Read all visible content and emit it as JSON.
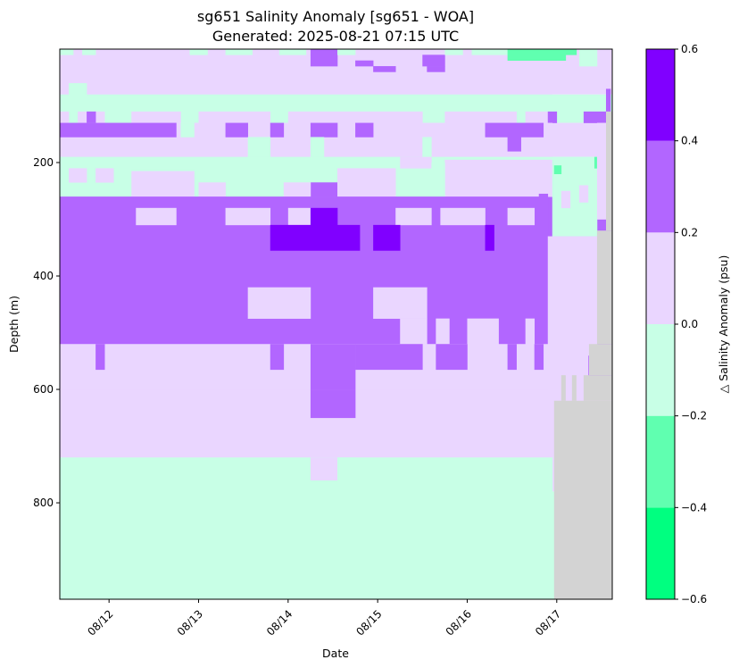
{
  "chart_data": {
    "type": "heatmap",
    "title_lines": [
      "sg651 Salinity Anomaly [sg651 - WOA]",
      "Generated: 2025-08-21 07:15 UTC"
    ],
    "xlabel": "Date",
    "ylabel": "Depth (m)",
    "x_range_days": [
      11.45,
      17.62
    ],
    "y_range_m": [
      0,
      970
    ],
    "y_inverted": true,
    "x_ticks": [
      {
        "day": 12,
        "label": "08/12"
      },
      {
        "day": 13,
        "label": "08/13"
      },
      {
        "day": 14,
        "label": "08/14"
      },
      {
        "day": 15,
        "label": "08/15"
      },
      {
        "day": 16,
        "label": "08/16"
      },
      {
        "day": 17,
        "label": "08/17"
      }
    ],
    "y_ticks": [
      200,
      400,
      600,
      800
    ],
    "colorbar": {
      "label": "△ Salinity Anomaly (psu)",
      "bounds": [
        -0.6,
        -0.4,
        -0.2,
        0.0,
        0.2,
        0.4,
        0.6
      ],
      "tick_labels": [
        "−0.6",
        "−0.4",
        "−0.2",
        "0.0",
        "0.2",
        "0.4",
        "0.6"
      ],
      "colors": [
        "#00ff80",
        "#60ffb0",
        "#c8ffe6",
        "#ead6ff",
        "#b266ff",
        "#8000ff"
      ]
    },
    "nodata_color": "#d3d3d3",
    "background_layers": [
      {
        "from_m": 0,
        "to_m": 80,
        "value": 0.1
      },
      {
        "from_m": 80,
        "to_m": 130,
        "value": -0.1
      },
      {
        "from_m": 130,
        "to_m": 190,
        "value": 0.1
      },
      {
        "from_m": 190,
        "to_m": 260,
        "value": -0.1
      },
      {
        "from_m": 260,
        "to_m": 600,
        "value": 0.3
      },
      {
        "from_m": 600,
        "to_m": 780,
        "value": 0.1
      },
      {
        "from_m": 780,
        "to_m": 970,
        "value": -0.1
      }
    ],
    "cells": [
      {
        "x": [
          11.45,
          16.95
        ],
        "y": [
          0,
          80
        ],
        "value": 0.1
      },
      {
        "x": [
          11.45,
          11.6
        ],
        "y": [
          0,
          10
        ],
        "value": -0.1
      },
      {
        "x": [
          11.7,
          11.85
        ],
        "y": [
          0,
          10
        ],
        "value": -0.1
      },
      {
        "x": [
          12.9,
          13.1
        ],
        "y": [
          0,
          10
        ],
        "value": -0.1
      },
      {
        "x": [
          13.3,
          13.6
        ],
        "y": [
          0,
          10
        ],
        "value": -0.1
      },
      {
        "x": [
          13.9,
          14.2
        ],
        "y": [
          0,
          10
        ],
        "value": -0.1
      },
      {
        "x": [
          14.25,
          14.55
        ],
        "y": [
          0,
          10
        ],
        "value": 0.3
      },
      {
        "x": [
          14.25,
          14.55
        ],
        "y": [
          10,
          30
        ],
        "value": 0.3
      },
      {
        "x": [
          14.55,
          14.75
        ],
        "y": [
          0,
          10
        ],
        "value": -0.1
      },
      {
        "x": [
          15.5,
          15.75
        ],
        "y": [
          10,
          30
        ],
        "value": 0.3
      },
      {
        "x": [
          15.75,
          15.95
        ],
        "y": [
          0,
          10
        ],
        "value": -0.1
      },
      {
        "x": [
          16.05,
          16.45
        ],
        "y": [
          0,
          10
        ],
        "value": -0.1
      },
      {
        "x": [
          16.45,
          16.8
        ],
        "y": [
          0,
          20
        ],
        "value": -0.3
      },
      {
        "x": [
          16.8,
          17.1
        ],
        "y": [
          0,
          20
        ],
        "value": -0.3
      },
      {
        "x": [
          17.1,
          17.22
        ],
        "y": [
          0,
          10
        ],
        "value": -0.3
      },
      {
        "x": [
          17.25,
          17.45
        ],
        "y": [
          0,
          30
        ],
        "value": -0.1
      },
      {
        "x": [
          14.75,
          14.95
        ],
        "y": [
          20,
          30
        ],
        "value": 0.3
      },
      {
        "x": [
          14.95,
          15.2
        ],
        "y": [
          30,
          40
        ],
        "value": 0.3
      },
      {
        "x": [
          15.55,
          15.75
        ],
        "y": [
          30,
          40
        ],
        "value": 0.3
      },
      {
        "x": [
          11.55,
          11.75
        ],
        "y": [
          60,
          80
        ],
        "value": -0.1
      },
      {
        "x": [
          12.95,
          13.15
        ],
        "y": [
          80,
          90
        ],
        "value": 0.1
      },
      {
        "x": [
          11.45,
          16.95
        ],
        "y": [
          80,
          130
        ],
        "value": -0.1
      },
      {
        "x": [
          11.45,
          11.55
        ],
        "y": [
          110,
          130
        ],
        "value": 0.1
      },
      {
        "x": [
          11.65,
          11.95
        ],
        "y": [
          110,
          130
        ],
        "value": 0.1
      },
      {
        "x": [
          12.25,
          12.8
        ],
        "y": [
          110,
          130
        ],
        "value": 0.1
      },
      {
        "x": [
          13.0,
          13.8
        ],
        "y": [
          110,
          130
        ],
        "value": 0.1
      },
      {
        "x": [
          14.0,
          15.5
        ],
        "y": [
          110,
          130
        ],
        "value": 0.1
      },
      {
        "x": [
          15.75,
          16.55
        ],
        "y": [
          110,
          130
        ],
        "value": 0.1
      },
      {
        "x": [
          16.65,
          16.9
        ],
        "y": [
          110,
          130
        ],
        "value": 0.1
      },
      {
        "x": [
          11.75,
          11.85
        ],
        "y": [
          110,
          130
        ],
        "value": 0.3
      },
      {
        "x": [
          16.9,
          17.0
        ],
        "y": [
          110,
          130
        ],
        "value": 0.3
      },
      {
        "x": [
          17.3,
          17.55
        ],
        "y": [
          110,
          130
        ],
        "value": 0.3
      },
      {
        "x": [
          17.55,
          17.6
        ],
        "y": [
          70,
          110
        ],
        "value": 0.3
      },
      {
        "x": [
          11.45,
          16.95
        ],
        "y": [
          130,
          190
        ],
        "value": 0.1
      },
      {
        "x": [
          11.45,
          12.75
        ],
        "y": [
          130,
          155
        ],
        "value": 0.3
      },
      {
        "x": [
          13.3,
          13.55
        ],
        "y": [
          130,
          155
        ],
        "value": 0.3
      },
      {
        "x": [
          13.8,
          13.95
        ],
        "y": [
          130,
          155
        ],
        "value": 0.3
      },
      {
        "x": [
          14.25,
          14.55
        ],
        "y": [
          130,
          155
        ],
        "value": 0.3
      },
      {
        "x": [
          14.75,
          14.95
        ],
        "y": [
          130,
          155
        ],
        "value": 0.3
      },
      {
        "x": [
          16.2,
          16.85
        ],
        "y": [
          130,
          155
        ],
        "value": 0.3
      },
      {
        "x": [
          16.45,
          16.6
        ],
        "y": [
          155,
          180
        ],
        "value": 0.3
      },
      {
        "x": [
          12.8,
          12.95
        ],
        "y": [
          130,
          155
        ],
        "value": -0.1
      },
      {
        "x": [
          13.55,
          13.8
        ],
        "y": [
          155,
          190
        ],
        "value": -0.1
      },
      {
        "x": [
          14.25,
          14.4
        ],
        "y": [
          155,
          190
        ],
        "value": -0.1
      },
      {
        "x": [
          15.5,
          15.6
        ],
        "y": [
          155,
          190
        ],
        "value": -0.1
      },
      {
        "x": [
          11.45,
          16.95
        ],
        "y": [
          190,
          260
        ],
        "value": -0.1
      },
      {
        "x": [
          11.55,
          11.75
        ],
        "y": [
          210,
          235
        ],
        "value": 0.1
      },
      {
        "x": [
          11.85,
          12.05
        ],
        "y": [
          210,
          235
        ],
        "value": 0.1
      },
      {
        "x": [
          12.25,
          12.95
        ],
        "y": [
          215,
          260
        ],
        "value": 0.1
      },
      {
        "x": [
          13.0,
          13.3
        ],
        "y": [
          235,
          260
        ],
        "value": 0.1
      },
      {
        "x": [
          14.25,
          14.55
        ],
        "y": [
          235,
          260
        ],
        "value": 0.3
      },
      {
        "x": [
          13.95,
          14.25
        ],
        "y": [
          235,
          260
        ],
        "value": 0.1
      },
      {
        "x": [
          14.55,
          15.2
        ],
        "y": [
          210,
          260
        ],
        "value": 0.1
      },
      {
        "x": [
          15.75,
          16.95
        ],
        "y": [
          195,
          260
        ],
        "value": 0.1
      },
      {
        "x": [
          15.25,
          15.6
        ],
        "y": [
          190,
          210
        ],
        "value": 0.1
      },
      {
        "x": [
          15.6,
          15.75
        ],
        "y": [
          200,
          260
        ],
        "value": -0.1
      },
      {
        "x": [
          16.95,
          17.45
        ],
        "y": [
          190,
          330
        ],
        "value": -0.1
      },
      {
        "x": [
          16.97,
          17.05
        ],
        "y": [
          205,
          220
        ],
        "value": -0.3
      },
      {
        "x": [
          17.42,
          17.47
        ],
        "y": [
          190,
          210
        ],
        "value": -0.3
      },
      {
        "x": [
          17.05,
          17.15
        ],
        "y": [
          250,
          280
        ],
        "value": 0.1
      },
      {
        "x": [
          17.25,
          17.35
        ],
        "y": [
          240,
          270
        ],
        "value": 0.1
      },
      {
        "x": [
          17.45,
          17.55
        ],
        "y": [
          130,
          300
        ],
        "value": 0.1
      },
      {
        "x": [
          11.45,
          16.9
        ],
        "y": [
          260,
          600
        ],
        "value": 0.3
      },
      {
        "x": [
          12.3,
          12.75
        ],
        "y": [
          280,
          310
        ],
        "value": 0.1
      },
      {
        "x": [
          13.3,
          13.8
        ],
        "y": [
          280,
          310
        ],
        "value": 0.1
      },
      {
        "x": [
          14.0,
          14.25
        ],
        "y": [
          280,
          310
        ],
        "value": 0.1
      },
      {
        "x": [
          15.2,
          15.6
        ],
        "y": [
          280,
          310
        ],
        "value": 0.1
      },
      {
        "x": [
          15.7,
          16.2
        ],
        "y": [
          280,
          310
        ],
        "value": 0.1
      },
      {
        "x": [
          16.45,
          16.75
        ],
        "y": [
          280,
          310
        ],
        "value": 0.1
      },
      {
        "x": [
          13.8,
          14.8
        ],
        "y": [
          310,
          355
        ],
        "value": 0.5
      },
      {
        "x": [
          14.25,
          14.55
        ],
        "y": [
          280,
          310
        ],
        "value": 0.5
      },
      {
        "x": [
          14.95,
          15.25
        ],
        "y": [
          310,
          355
        ],
        "value": 0.5
      },
      {
        "x": [
          16.2,
          16.3
        ],
        "y": [
          310,
          355
        ],
        "value": 0.5
      },
      {
        "x": [
          13.55,
          14.25
        ],
        "y": [
          420,
          475
        ],
        "value": 0.1
      },
      {
        "x": [
          14.95,
          15.55
        ],
        "y": [
          420,
          475
        ],
        "value": 0.1
      },
      {
        "x": [
          15.25,
          15.55
        ],
        "y": [
          475,
          520
        ],
        "value": 0.1
      },
      {
        "x": [
          15.65,
          15.8
        ],
        "y": [
          475,
          520
        ],
        "value": 0.1
      },
      {
        "x": [
          16.0,
          16.35
        ],
        "y": [
          475,
          520
        ],
        "value": 0.1
      },
      {
        "x": [
          16.65,
          16.75
        ],
        "y": [
          475,
          520
        ],
        "value": 0.1
      },
      {
        "x": [
          16.8,
          16.9
        ],
        "y": [
          255,
          330
        ],
        "value": 0.3
      },
      {
        "x": [
          16.9,
          17.45
        ],
        "y": [
          330,
          520
        ],
        "value": 0.1
      },
      {
        "x": [
          11.45,
          16.95
        ],
        "y": [
          520,
          600
        ],
        "value": 0.1
      },
      {
        "x": [
          11.85,
          11.95
        ],
        "y": [
          520,
          565
        ],
        "value": 0.3
      },
      {
        "x": [
          13.8,
          13.95
        ],
        "y": [
          520,
          565
        ],
        "value": 0.3
      },
      {
        "x": [
          14.25,
          14.75
        ],
        "y": [
          520,
          610
        ],
        "value": 0.3
      },
      {
        "x": [
          14.75,
          15.5
        ],
        "y": [
          520,
          565
        ],
        "value": 0.3
      },
      {
        "x": [
          15.65,
          16.0
        ],
        "y": [
          520,
          565
        ],
        "value": 0.3
      },
      {
        "x": [
          16.45,
          16.55
        ],
        "y": [
          520,
          565
        ],
        "value": 0.3
      },
      {
        "x": [
          16.75,
          16.85
        ],
        "y": [
          520,
          565
        ],
        "value": 0.3
      },
      {
        "x": [
          11.45,
          16.95
        ],
        "y": [
          600,
          780
        ],
        "value": 0.1
      },
      {
        "x": [
          14.25,
          14.75
        ],
        "y": [
          600,
          650
        ],
        "value": 0.3
      },
      {
        "x": [
          11.45,
          16.95
        ],
        "y": [
          720,
          780
        ],
        "value": -0.1
      },
      {
        "x": [
          14.25,
          14.55
        ],
        "y": [
          720,
          760
        ],
        "value": 0.1
      },
      {
        "x": [
          14.75,
          16.95
        ],
        "y": [
          760,
          780
        ],
        "value": -0.1
      },
      {
        "x": [
          14.55,
          14.75
        ],
        "y": [
          720,
          760
        ],
        "value": -0.1
      },
      {
        "x": [
          11.45,
          16.95
        ],
        "y": [
          780,
          970
        ],
        "value": -0.1
      },
      {
        "x": [
          16.95,
          17.35
        ],
        "y": [
          520,
          600
        ],
        "value": 0.1
      },
      {
        "x": [
          17.35,
          17.45
        ],
        "y": [
          520,
          540
        ],
        "value": 0.1
      }
    ],
    "nodata_regions": [
      {
        "x": [
          16.97,
          17.62
        ],
        "y": [
          620,
          970
        ]
      },
      {
        "x": [
          17.05,
          17.1
        ],
        "y": [
          575,
          620
        ]
      },
      {
        "x": [
          17.17,
          17.22
        ],
        "y": [
          575,
          620
        ]
      },
      {
        "x": [
          17.3,
          17.62
        ],
        "y": [
          575,
          620
        ]
      },
      {
        "x": [
          17.36,
          17.62
        ],
        "y": [
          520,
          575
        ]
      },
      {
        "x": [
          17.45,
          17.62
        ],
        "y": [
          320,
          520
        ]
      },
      {
        "x": [
          17.55,
          17.62
        ],
        "y": [
          110,
          320
        ]
      }
    ]
  }
}
